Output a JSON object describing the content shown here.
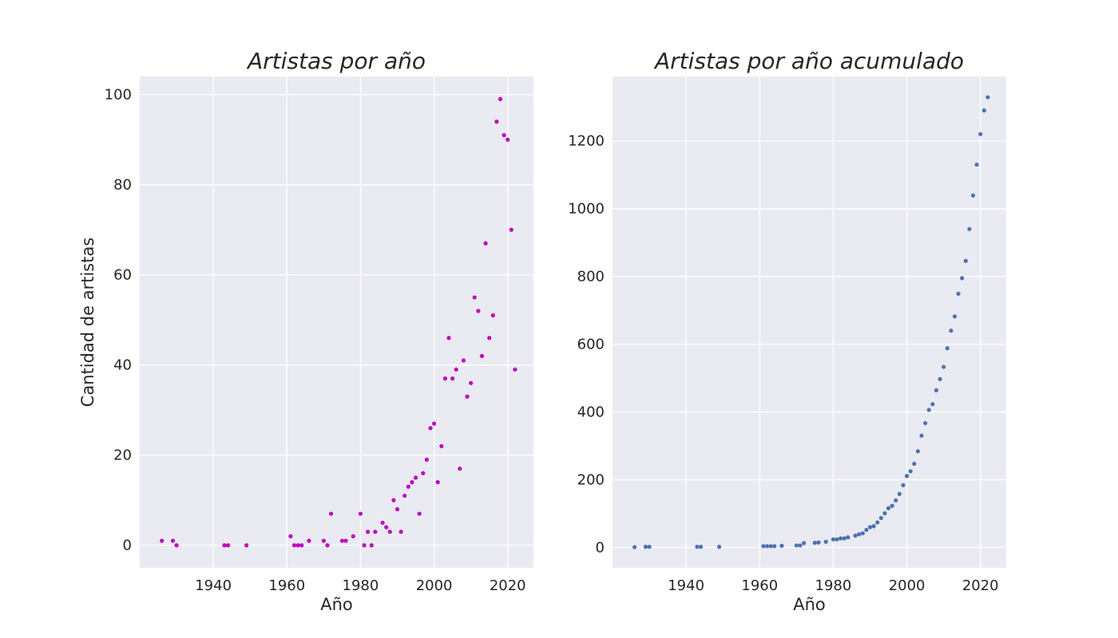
{
  "chart_data": [
    {
      "type": "scatter",
      "title": "Artistas por año",
      "xlabel": "Año",
      "ylabel": "Cantidad de artistas",
      "xlim": [
        1920,
        2027
      ],
      "ylim": [
        -5,
        104
      ],
      "xticks": [
        1940,
        1960,
        1980,
        2000,
        2020
      ],
      "yticks": [
        0,
        20,
        40,
        60,
        80,
        100
      ],
      "grid": true,
      "color": "#bf00bf",
      "series": [
        {
          "x": [
            1926,
            1929,
            1930,
            1943,
            1944,
            1949,
            1961,
            1962,
            1963,
            1964,
            1966,
            1970,
            1971,
            1972,
            1975,
            1976,
            1978,
            1980,
            1981,
            1982,
            1983,
            1984,
            1986,
            1987,
            1988,
            1989,
            1990,
            1991,
            1992,
            1993,
            1994,
            1995,
            1996,
            1997,
            1998,
            1999,
            2000,
            2001,
            2002,
            2003,
            2004,
            2005,
            2006,
            2007,
            2008,
            2009,
            2010,
            2011,
            2012,
            2013,
            2014,
            2015,
            2016,
            2017,
            2018,
            2019,
            2020,
            2021,
            2022
          ],
          "y": [
            1,
            1,
            0,
            0,
            0,
            0,
            2,
            0,
            0,
            0,
            1,
            1,
            0,
            7,
            1,
            1,
            2,
            7,
            0,
            3,
            0,
            3,
            5,
            4,
            3,
            10,
            8,
            3,
            11,
            13,
            14,
            15,
            7,
            16,
            19,
            26,
            27,
            14,
            22,
            37,
            46,
            37,
            39,
            17,
            41,
            33,
            36,
            55,
            52,
            42,
            67,
            46,
            51,
            94,
            99,
            91,
            90,
            70,
            39
          ]
        }
      ]
    },
    {
      "type": "scatter",
      "title": "Artistas por año acumulado",
      "xlabel": "Año",
      "ylabel": "",
      "xlim": [
        1920,
        2027
      ],
      "ylim": [
        -60,
        1390
      ],
      "xticks": [
        1940,
        1960,
        1980,
        2000,
        2020
      ],
      "yticks": [
        0,
        200,
        400,
        600,
        800,
        1000,
        1200
      ],
      "grid": true,
      "color": "#4c72b0",
      "series": [
        {
          "x": [
            1926,
            1929,
            1930,
            1943,
            1944,
            1949,
            1961,
            1962,
            1963,
            1964,
            1966,
            1970,
            1971,
            1972,
            1975,
            1976,
            1978,
            1980,
            1981,
            1982,
            1983,
            1984,
            1986,
            1987,
            1988,
            1989,
            1990,
            1991,
            1992,
            1993,
            1994,
            1995,
            1996,
            1997,
            1998,
            1999,
            2000,
            2001,
            2002,
            2003,
            2004,
            2005,
            2006,
            2007,
            2008,
            2009,
            2010,
            2011,
            2012,
            2013,
            2014,
            2015,
            2016,
            2017,
            2018,
            2019,
            2020,
            2021,
            2022
          ],
          "y": [
            1,
            2,
            2,
            2,
            2,
            2,
            4,
            4,
            4,
            4,
            5,
            6,
            6,
            13,
            14,
            15,
            17,
            24,
            24,
            27,
            27,
            30,
            35,
            39,
            42,
            52,
            60,
            63,
            74,
            87,
            101,
            116,
            123,
            139,
            158,
            184,
            211,
            225,
            247,
            284,
            330,
            367,
            406,
            423,
            464,
            497,
            533,
            588,
            640,
            682,
            749,
            795,
            846,
            940,
            1039,
            1130,
            1220,
            1290,
            1329
          ]
        }
      ]
    }
  ]
}
